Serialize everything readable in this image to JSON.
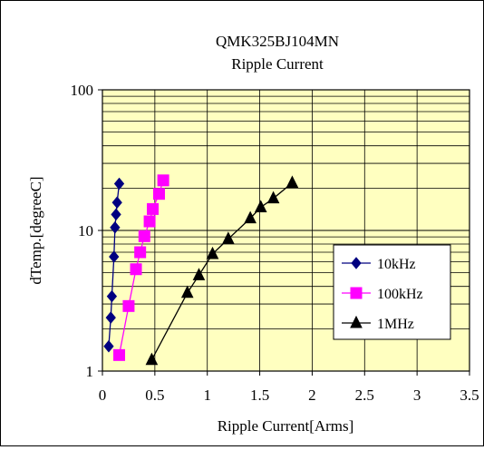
{
  "chart_data": {
    "type": "scatter",
    "title": "QMK325BJ104MN",
    "subtitle": "Ripple Current",
    "xlabel": "Ripple Current[Arms]",
    "ylabel": "dTemp.[degreeC]",
    "xlim": [
      0,
      3.5
    ],
    "ylim": [
      1,
      100
    ],
    "y_scale": "log",
    "x_ticks": [
      "0",
      "0.5",
      "1",
      "1.5",
      "2",
      "2.5",
      "3",
      "3.5"
    ],
    "y_ticks": [
      "1",
      "10",
      "100"
    ],
    "grid": true,
    "plot_background": "#ffffc0",
    "legend_position": "bottom-right",
    "series": [
      {
        "name": "10kHz",
        "color": "#000080",
        "marker": "diamond",
        "points": [
          [
            0.06,
            1.5
          ],
          [
            0.08,
            2.4
          ],
          [
            0.09,
            3.4
          ],
          [
            0.11,
            6.5
          ],
          [
            0.12,
            10.5
          ],
          [
            0.13,
            13.0
          ],
          [
            0.14,
            15.8
          ],
          [
            0.16,
            21.5
          ]
        ]
      },
      {
        "name": "100kHz",
        "color": "#ff00ff",
        "marker": "square",
        "points": [
          [
            0.16,
            1.3
          ],
          [
            0.25,
            2.9
          ],
          [
            0.32,
            5.3
          ],
          [
            0.36,
            7.0
          ],
          [
            0.4,
            9.1
          ],
          [
            0.45,
            11.6
          ],
          [
            0.48,
            14.2
          ],
          [
            0.54,
            18.2
          ],
          [
            0.58,
            22.7
          ]
        ]
      },
      {
        "name": "1MHz",
        "color": "#000000",
        "marker": "triangle",
        "points": [
          [
            0.47,
            1.2
          ],
          [
            0.81,
            3.6
          ],
          [
            0.92,
            4.8
          ],
          [
            1.05,
            6.8
          ],
          [
            1.2,
            8.7
          ],
          [
            1.41,
            12.2
          ],
          [
            1.51,
            14.6
          ],
          [
            1.63,
            16.9
          ],
          [
            1.81,
            21.8
          ]
        ]
      }
    ]
  }
}
